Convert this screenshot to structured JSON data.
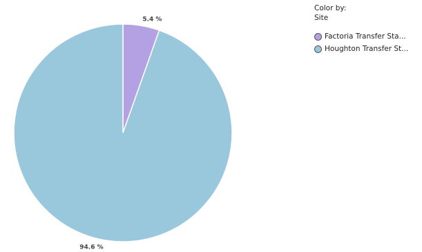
{
  "legend": {
    "title_line1": "Color by:",
    "title_line2": "Site",
    "items": [
      {
        "label": "Factoria Transfer Sta...",
        "color": "#b3a1e3"
      },
      {
        "label": "Houghton Transfer St...",
        "color": "#99c8dc"
      }
    ]
  },
  "chart_data": {
    "type": "pie",
    "slices": [
      {
        "label": "Factoria Transfer Sta...",
        "value": 5.4,
        "display": "5.4 %",
        "color": "#b3a1e3"
      },
      {
        "label": "Houghton Transfer St...",
        "value": 94.6,
        "display": "94.6 %",
        "color": "#99c8dc"
      }
    ],
    "start_angle": "12 o'clock",
    "direction": "clockwise",
    "legend_position": "top-right"
  }
}
